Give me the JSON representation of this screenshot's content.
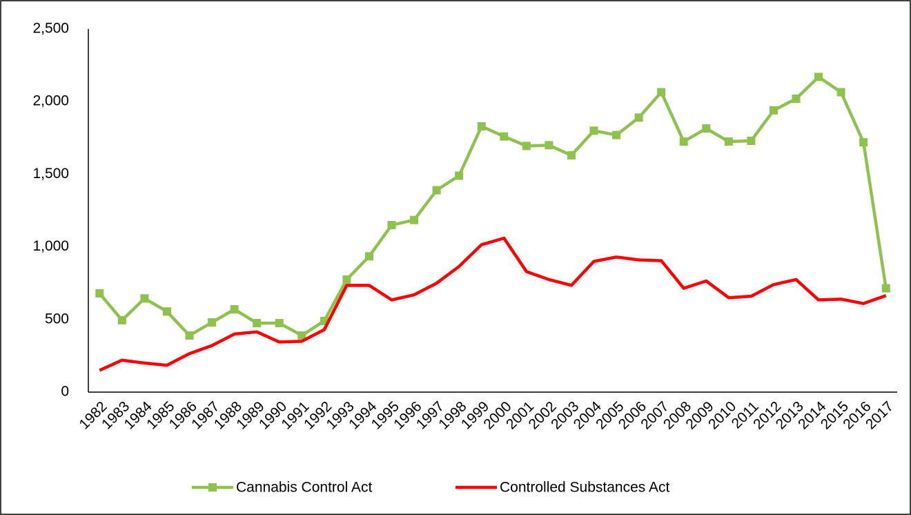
{
  "chart_data": {
    "type": "line",
    "categories": [
      "1982",
      "1983",
      "1984",
      "1985",
      "1986",
      "1987",
      "1988",
      "1989",
      "1990",
      "1991",
      "1992",
      "1993",
      "1994",
      "1995",
      "1996",
      "1997",
      "1998",
      "1999",
      "2000",
      "2001",
      "2002",
      "2003",
      "2004",
      "2005",
      "2006",
      "2007",
      "2008",
      "2009",
      "2010",
      "2011",
      "2012",
      "2013",
      "2014",
      "2015",
      "2016",
      "2017"
    ],
    "series": [
      {
        "name": "Cannabis Control Act",
        "color": "#8fc14f",
        "marker": "square",
        "values": [
          680,
          495,
          645,
          555,
          390,
          480,
          570,
          475,
          475,
          390,
          490,
          775,
          935,
          1150,
          1185,
          1390,
          1490,
          1830,
          1760,
          1695,
          1700,
          1630,
          1800,
          1770,
          1890,
          2065,
          1725,
          1815,
          1725,
          1730,
          1940,
          2020,
          2170,
          2065,
          1720,
          715
        ]
      },
      {
        "name": "Controlled Substances Act",
        "color": "#ff0000",
        "marker": "none",
        "values": [
          150,
          220,
          200,
          185,
          265,
          320,
          400,
          415,
          345,
          350,
          430,
          735,
          735,
          635,
          670,
          750,
          865,
          1015,
          1060,
          830,
          775,
          735,
          900,
          930,
          910,
          905,
          715,
          765,
          650,
          660,
          740,
          775,
          635,
          640,
          610,
          665
        ]
      }
    ],
    "ylim": [
      0,
      2500
    ],
    "yticks": [
      0,
      500,
      {
        "value": 1000,
        "label": "1,000"
      },
      {
        "value": 1500,
        "label": "1,500"
      },
      {
        "value": 2000,
        "label": "2,000"
      },
      {
        "value": 2500,
        "label": "2,500"
      }
    ],
    "grid": false,
    "legend": "bottom"
  }
}
